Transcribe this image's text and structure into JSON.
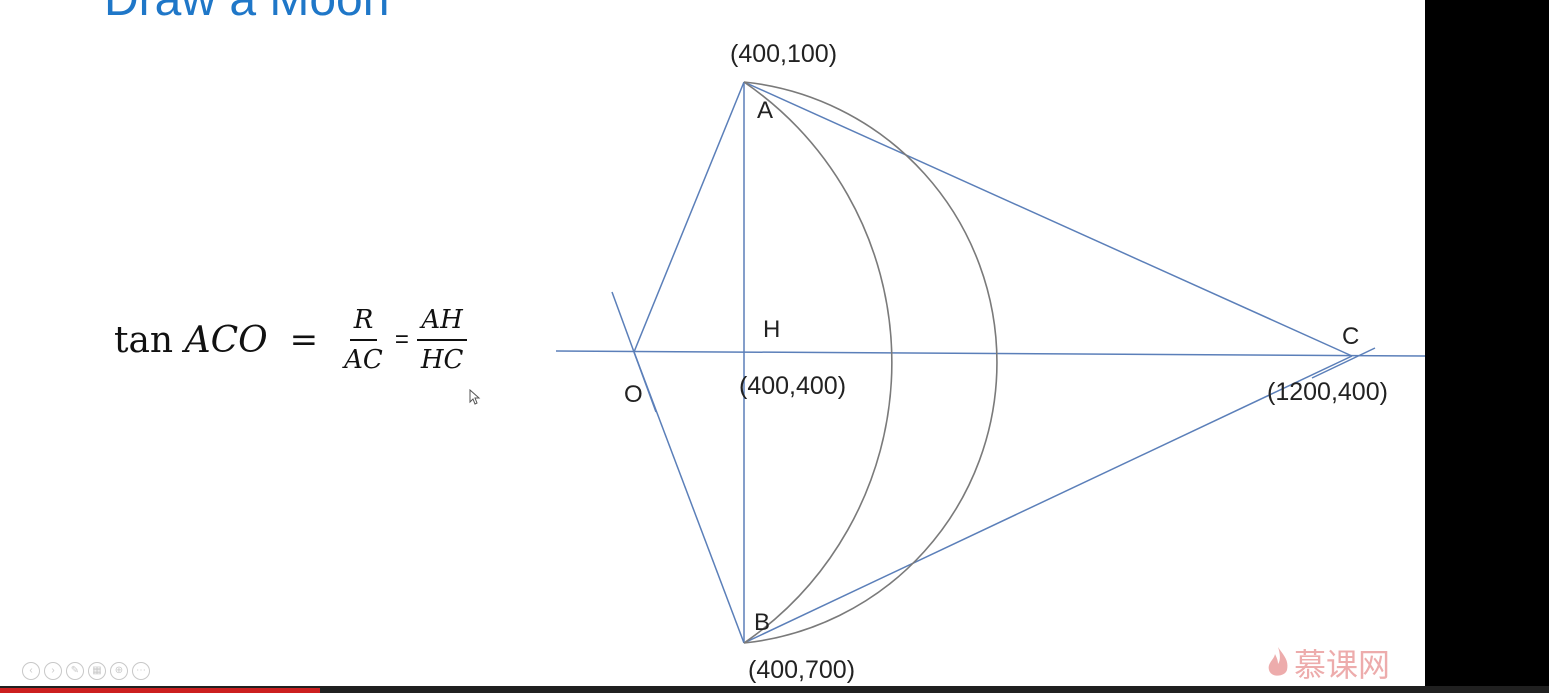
{
  "title": "Draw a Moon",
  "points": {
    "A": {
      "label": "A",
      "coord": "(400,100)"
    },
    "B": {
      "label": "B",
      "coord": "(400,700)"
    },
    "H": {
      "label": "H",
      "coord": "(400,400)"
    },
    "C": {
      "label": "C",
      "coord": "(1200,400)"
    },
    "O": {
      "label": "O"
    }
  },
  "formula": {
    "lhs_fn": "tan",
    "lhs_angle": "ACO",
    "eq": "=",
    "frac1_num": "R",
    "frac1_den": "AC",
    "eq2": "=",
    "frac2_num": "AH",
    "frac2_den": "HC"
  },
  "watermark": "慕课网",
  "colors": {
    "title": "#1f77c8",
    "lines": "#5b7fb9",
    "arcs": "#7a7a7a"
  },
  "icons": [
    "prev-icon",
    "next-icon",
    "pen-icon",
    "slides-icon",
    "zoom-icon",
    "more-icon",
    "flame-logo-icon",
    "cursor-icon"
  ]
}
